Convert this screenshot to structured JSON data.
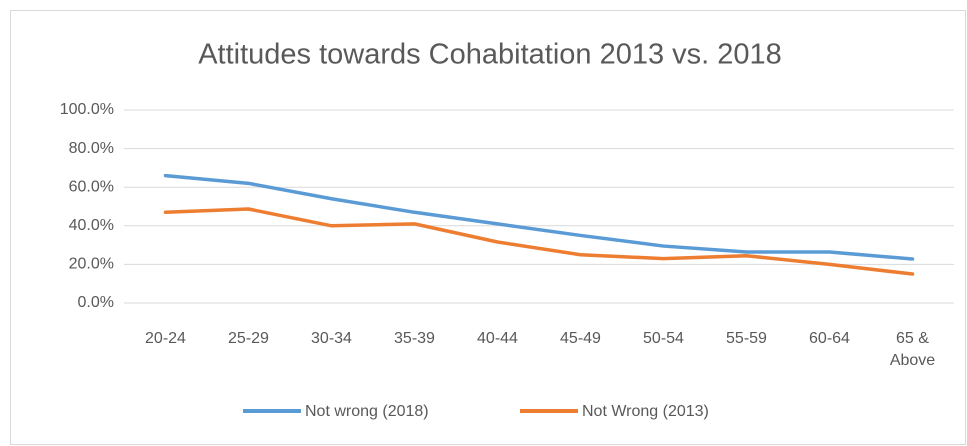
{
  "chart_data": {
    "type": "line",
    "title": "Attitudes towards Cohabitation 2013 vs. 2018",
    "categories": [
      "20-24",
      "25-29",
      "30-34",
      "35-39",
      "40-44",
      "45-49",
      "50-54",
      "55-59",
      "60-64",
      "65 & Above"
    ],
    "series": [
      {
        "name": "Not wrong (2018)",
        "color": "#5b9bd5",
        "values": [
          66,
          62,
          54,
          47,
          41,
          35,
          29.5,
          26.4,
          26.4,
          22.8
        ]
      },
      {
        "name": "Not Wrong (2013)",
        "color": "#ed7d31",
        "values": [
          47,
          48.7,
          40,
          41,
          31.6,
          25,
          23,
          24.5,
          20,
          15
        ]
      }
    ],
    "ylim": [
      0,
      100
    ],
    "yticks": [
      {
        "value": 0,
        "label": "0.0%"
      },
      {
        "value": 20,
        "label": "20.0%"
      },
      {
        "value": 40,
        "label": "40.0%"
      },
      {
        "value": 60,
        "label": "60.0%"
      },
      {
        "value": 80,
        "label": "80.0%"
      },
      {
        "value": 100,
        "label": "100.0%"
      }
    ],
    "grid": true,
    "legend": "bottom"
  }
}
